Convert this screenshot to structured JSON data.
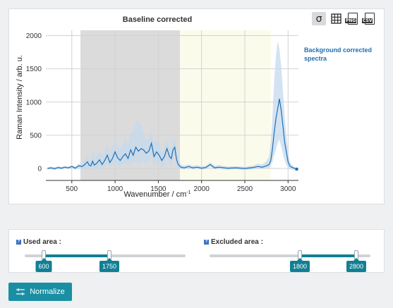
{
  "toolbar": {
    "sigma_label": "σ",
    "png_label": "PNG",
    "csv_label": "CSV"
  },
  "chart_data": {
    "type": "line",
    "title": "Baseline corrected",
    "xlabel": "Wavenumber / cm",
    "xlabel_superscript": "-1",
    "ylabel": "Raman Intensity / arb. u.",
    "xlim": [
      200,
      3120
    ],
    "ylim": [
      -180,
      2080
    ],
    "x_ticks": [
      500,
      1000,
      1500,
      2000,
      2500,
      3000
    ],
    "y_ticks": [
      0,
      500,
      1000,
      1500,
      2000
    ],
    "grid": true,
    "legend_position": "top-right",
    "colors": {
      "line": "#1f6fb2",
      "band": "#c4daee",
      "used_area": "#dbdbdb",
      "excluded_area": "#fbfbec",
      "legend_text": "#1f6fb2"
    },
    "used_area": [
      600,
      1750
    ],
    "excluded_area": [
      1750,
      2800
    ],
    "series": [
      {
        "name": "Background corrected spectra",
        "x": [
          220,
          260,
          300,
          340,
          380,
          420,
          460,
          500,
          540,
          580,
          620,
          650,
          680,
          700,
          720,
          740,
          760,
          790,
          820,
          850,
          880,
          910,
          940,
          970,
          1000,
          1030,
          1060,
          1090,
          1120,
          1150,
          1180,
          1210,
          1240,
          1270,
          1300,
          1330,
          1360,
          1390,
          1420,
          1450,
          1480,
          1510,
          1540,
          1570,
          1600,
          1630,
          1650,
          1670,
          1690,
          1710,
          1730,
          1760,
          1800,
          1850,
          1900,
          1950,
          2000,
          2050,
          2100,
          2150,
          2200,
          2300,
          2400,
          2500,
          2600,
          2650,
          2700,
          2750,
          2780,
          2800,
          2820,
          2840,
          2860,
          2880,
          2900,
          2920,
          2940,
          2960,
          2980,
          3000,
          3020,
          3040,
          3060,
          3080,
          3100
        ],
        "y": [
          0,
          10,
          -5,
          15,
          5,
          20,
          10,
          30,
          5,
          40,
          30,
          60,
          100,
          50,
          40,
          110,
          50,
          80,
          130,
          60,
          120,
          200,
          90,
          150,
          250,
          160,
          120,
          180,
          220,
          150,
          280,
          200,
          320,
          260,
          300,
          280,
          230,
          260,
          380,
          180,
          250,
          200,
          120,
          180,
          300,
          180,
          150,
          280,
          320,
          140,
          60,
          20,
          10,
          30,
          10,
          20,
          5,
          15,
          60,
          10,
          20,
          5,
          10,
          0,
          15,
          30,
          20,
          40,
          60,
          120,
          300,
          550,
          750,
          900,
          1050,
          880,
          650,
          400,
          250,
          100,
          40,
          20,
          10,
          0,
          -10
        ],
        "band_upper": [
          20,
          30,
          20,
          35,
          25,
          40,
          30,
          50,
          30,
          70,
          70,
          130,
          220,
          130,
          120,
          280,
          140,
          200,
          280,
          180,
          260,
          360,
          240,
          330,
          420,
          330,
          300,
          360,
          440,
          350,
          520,
          560,
          700,
          720,
          650,
          550,
          430,
          460,
          560,
          380,
          430,
          380,
          250,
          300,
          420,
          320,
          280,
          420,
          450,
          280,
          130,
          60,
          40,
          60,
          40,
          50,
          30,
          45,
          90,
          40,
          50,
          30,
          35,
          25,
          45,
          70,
          60,
          110,
          180,
          400,
          800,
          1350,
          1700,
          1920,
          1800,
          1550,
          1200,
          800,
          500,
          260,
          100,
          60,
          40,
          20,
          10
        ],
        "band_lower": [
          -15,
          -10,
          -25,
          -5,
          -15,
          0,
          -10,
          10,
          -20,
          10,
          -10,
          0,
          20,
          -20,
          -30,
          20,
          -20,
          0,
          40,
          -20,
          40,
          80,
          20,
          60,
          120,
          60,
          20,
          60,
          80,
          30,
          100,
          80,
          120,
          60,
          100,
          120,
          80,
          110,
          220,
          40,
          100,
          60,
          10,
          60,
          170,
          60,
          40,
          150,
          200,
          40,
          0,
          -10,
          -15,
          5,
          -15,
          -5,
          -20,
          -10,
          30,
          -15,
          -5,
          -20,
          -10,
          -25,
          -10,
          0,
          -10,
          0,
          10,
          40,
          100,
          200,
          280,
          380,
          440,
          330,
          220,
          120,
          60,
          10,
          -10,
          -15,
          -25,
          -30,
          -35
        ]
      }
    ]
  }
}
